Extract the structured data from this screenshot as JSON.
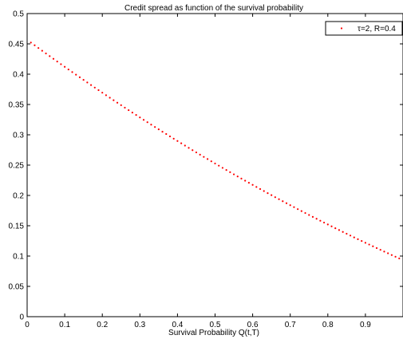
{
  "chart_data": {
    "type": "scatter",
    "title": "Credit spread as function of the survival probability",
    "xlabel": "Survival Probability Q(t,T)",
    "ylabel": "",
    "xlim": [
      0,
      1
    ],
    "ylim": [
      0,
      0.5
    ],
    "xticks": [
      0,
      0.1,
      0.2,
      0.3,
      0.4,
      0.5,
      0.6,
      0.7,
      0.8,
      0.9
    ],
    "xtick_labels": [
      "0",
      "0.1",
      "0.2",
      "0.3",
      "0.4",
      "0.5",
      "0.6",
      "0.7",
      "0.8",
      "0.9"
    ],
    "yticks": [
      0,
      0.05,
      0.1,
      0.15,
      0.2,
      0.25,
      0.3,
      0.35,
      0.4,
      0.45,
      0.5
    ],
    "ytick_labels": [
      "0",
      "0.05",
      "0.1",
      "0.15",
      "0.2",
      "0.25",
      "0.3",
      "0.35",
      "0.4",
      "0.45",
      "0.5"
    ],
    "grid": false,
    "legend_position": "top-right",
    "series": [
      {
        "name": "τ=2, R=0.4",
        "color": "#ff0000",
        "marker": "dot",
        "x": [
          0.01,
          0.02,
          0.03,
          0.04,
          0.05,
          0.06,
          0.07,
          0.08,
          0.09,
          0.1,
          0.11,
          0.12,
          0.13,
          0.14,
          0.15,
          0.16,
          0.17,
          0.18,
          0.19,
          0.2,
          0.21,
          0.22,
          0.23,
          0.24,
          0.25,
          0.26,
          0.27,
          0.28,
          0.29,
          0.3,
          0.31,
          0.32,
          0.33,
          0.34,
          0.35,
          0.36,
          0.37,
          0.38,
          0.39,
          0.4,
          0.41,
          0.42,
          0.43,
          0.44,
          0.45,
          0.46,
          0.47,
          0.48,
          0.49,
          0.5,
          0.51,
          0.52,
          0.53,
          0.54,
          0.55,
          0.56,
          0.57,
          0.58,
          0.59,
          0.6,
          0.61,
          0.62,
          0.63,
          0.64,
          0.65,
          0.66,
          0.67,
          0.68,
          0.69,
          0.7,
          0.71,
          0.72,
          0.73,
          0.74,
          0.75,
          0.76,
          0.77,
          0.78,
          0.79,
          0.8,
          0.81,
          0.82,
          0.83,
          0.84,
          0.85,
          0.86,
          0.87,
          0.88,
          0.89,
          0.9,
          0.91,
          0.92,
          0.93,
          0.94,
          0.95,
          0.96,
          0.97,
          0.98,
          0.99
        ],
        "y": [
          0.4522,
          0.4477,
          0.4432,
          0.4387,
          0.4342,
          0.4298,
          0.4253,
          0.4209,
          0.4165,
          0.4122,
          0.4078,
          0.4035,
          0.3992,
          0.3949,
          0.3906,
          0.3863,
          0.3821,
          0.3779,
          0.3737,
          0.3695,
          0.3653,
          0.3612,
          0.3571,
          0.353,
          0.3489,
          0.3448,
          0.3407,
          0.3367,
          0.3327,
          0.3287,
          0.3247,
          0.3208,
          0.3168,
          0.3129,
          0.309,
          0.3051,
          0.3013,
          0.2974,
          0.2936,
          0.2898,
          0.286,
          0.2822,
          0.2785,
          0.2747,
          0.271,
          0.2673,
          0.2636,
          0.26,
          0.2563,
          0.2527,
          0.2491,
          0.2455,
          0.2419,
          0.2384,
          0.2348,
          0.2313,
          0.2278,
          0.2243,
          0.2209,
          0.2174,
          0.214,
          0.2106,
          0.2072,
          0.2038,
          0.2005,
          0.1971,
          0.1938,
          0.1905,
          0.1872,
          0.1839,
          0.1807,
          0.1774,
          0.1742,
          0.171,
          0.1678,
          0.1646,
          0.1615,
          0.1583,
          0.1552,
          0.1521,
          0.149,
          0.1459,
          0.1429,
          0.1398,
          0.1368,
          0.1338,
          0.1308,
          0.1278,
          0.1249,
          0.1219,
          0.119,
          0.1161,
          0.1132,
          0.1103,
          0.1074,
          0.1046,
          0.1017,
          0.0989,
          0.0961
        ]
      }
    ]
  }
}
